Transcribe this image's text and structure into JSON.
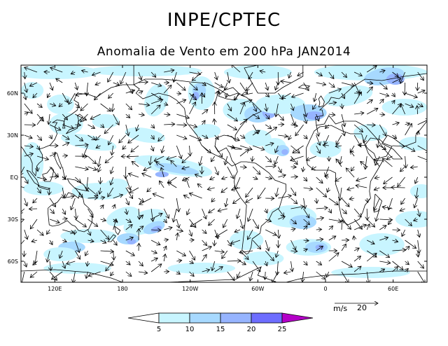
{
  "title": "INPE/CPTEC",
  "subtitle": "Anomalia de Vento em 200 hPa JAN2014",
  "map": {
    "lon_range": [
      90,
      450
    ],
    "lat_range": [
      -75,
      80
    ],
    "lat_ticks": [
      {
        "value": 60,
        "label": "60N"
      },
      {
        "value": 30,
        "label": "30N"
      },
      {
        "value": 0,
        "label": "EQ"
      },
      {
        "value": -30,
        "label": "30S"
      },
      {
        "value": -60,
        "label": "60S"
      }
    ],
    "lon_ticks": [
      {
        "value": 120,
        "label": "120E"
      },
      {
        "value": 180,
        "label": "180"
      },
      {
        "value": 240,
        "label": "120W"
      },
      {
        "value": 300,
        "label": "60W"
      },
      {
        "value": 360,
        "label": "0"
      },
      {
        "value": 420,
        "label": "60E"
      }
    ]
  },
  "colorbar": {
    "levels": [
      "5",
      "10",
      "15",
      "20",
      "25"
    ],
    "colors": [
      "#ffffff",
      "#c8f5ff",
      "#a7d9ff",
      "#96b4ff",
      "#6d6dff",
      "#5050f0",
      "#b400c8"
    ]
  },
  "reference_vector": {
    "units": "m/s",
    "value": "20"
  },
  "shading_colors": [
    "#c8f5ff",
    "#a7d9ff",
    "#96b4ff",
    "#6d6dff"
  ]
}
